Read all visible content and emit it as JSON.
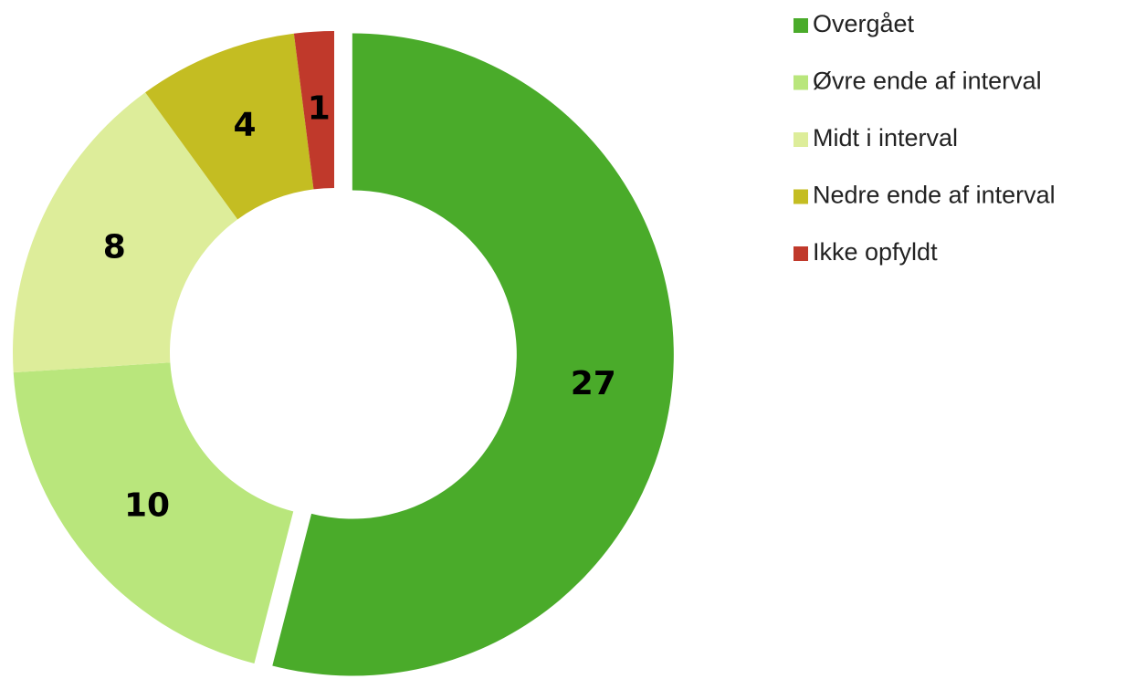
{
  "chart_data": {
    "type": "donut",
    "categories": [
      "Overgået",
      "Øvre ende af interval",
      "Midt i interval",
      "Nedre ende af interval",
      "Ikke opfyldt"
    ],
    "values": [
      27,
      10,
      8,
      4,
      1
    ],
    "colors": [
      "#4aab2a",
      "#b9e67c",
      "#dded9a",
      "#c4bd22",
      "#c0392b"
    ],
    "exploded": [
      true,
      false,
      false,
      false,
      false
    ],
    "legend": "right"
  }
}
